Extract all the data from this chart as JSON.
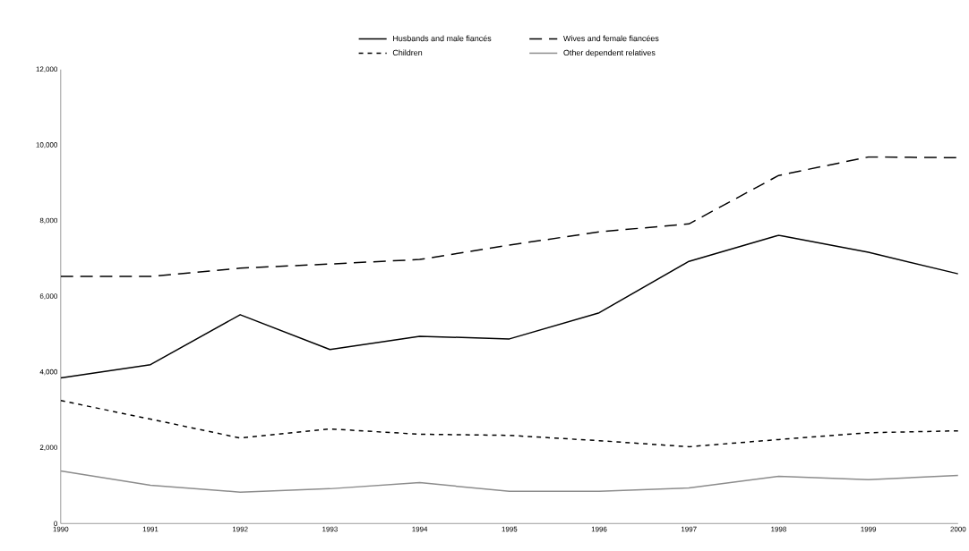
{
  "chart_data": {
    "type": "line",
    "categories": [
      "1990",
      "1991",
      "1992",
      "1993",
      "1994",
      "1995",
      "1996",
      "1997",
      "1998",
      "1999",
      "2000"
    ],
    "series": [
      {
        "name": "Husbands and male fiancés",
        "color": "#000000",
        "line_style": "solid",
        "values": [
          3850,
          4200,
          5520,
          4600,
          4950,
          4880,
          5570,
          6930,
          7620,
          7170,
          6600
        ]
      },
      {
        "name": "Wives and female fiancées",
        "color": "#000000",
        "line_style": "dashed",
        "values": [
          6530,
          6530,
          6750,
          6860,
          6980,
          7360,
          7710,
          7920,
          9200,
          9690,
          9670
        ]
      },
      {
        "name": "Children",
        "color": "#000000",
        "line_style": "dotted",
        "values": [
          3250,
          2760,
          2260,
          2500,
          2360,
          2330,
          2190,
          2030,
          2220,
          2400,
          2450
        ]
      },
      {
        "name": "Other dependent relatives",
        "color": "#8c8c8c",
        "line_style": "solid",
        "values": [
          1390,
          1010,
          830,
          920,
          1080,
          850,
          850,
          940,
          1250,
          1160,
          1270
        ]
      }
    ],
    "ylim": [
      0,
      12000
    ],
    "yticks": [
      {
        "value": 0,
        "label": "0"
      },
      {
        "value": 2000,
        "label": "2,000"
      },
      {
        "value": 4000,
        "label": "4,000"
      },
      {
        "value": 6000,
        "label": "6,000"
      },
      {
        "value": 8000,
        "label": "8,000"
      },
      {
        "value": 10000,
        "label": "10,000"
      },
      {
        "value": 12000,
        "label": "12,000"
      }
    ],
    "grid": false,
    "legend": "top",
    "marker": "none"
  }
}
